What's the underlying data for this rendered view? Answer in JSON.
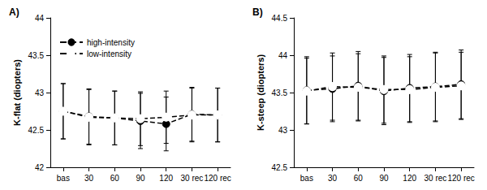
{
  "chart_data": [
    {
      "type": "line",
      "title": "A)",
      "y_label": "K-flat (diopters)",
      "categories": [
        "bas",
        "30",
        "60",
        "90",
        "120",
        "30 rec",
        "120 rec"
      ],
      "series": [
        {
          "name": "high-intensity",
          "color": "#000000",
          "marker": "circle",
          "line_style": "dashed",
          "values": [
            42.75,
            42.68,
            42.66,
            42.62,
            42.58,
            42.71,
            42.7
          ],
          "errors": [
            0.37,
            0.37,
            0.36,
            0.37,
            0.36,
            0.36,
            0.36
          ]
        },
        {
          "name": "low-intensity",
          "color": "#000000",
          "marker": "open circle",
          "line_style": "dashed",
          "values": [
            42.75,
            42.67,
            42.66,
            42.65,
            42.67,
            42.7,
            42.7
          ],
          "errors": [
            0.37,
            0.37,
            0.36,
            0.36,
            0.35,
            0.36,
            0.36
          ]
        }
      ],
      "ylim": [
        42,
        44
      ],
      "yticks": [
        42,
        42.5,
        43,
        43.5,
        44
      ],
      "grid": false,
      "legend": "upper left"
    },
    {
      "type": "line",
      "title": "B)",
      "y_label": "K-steep (diopters)",
      "categories": [
        "bas",
        "30",
        "60",
        "90",
        "120",
        "30 rec",
        "120 rec"
      ],
      "series": [
        {
          "name": "high-intensity",
          "color": "#000000",
          "marker": "circle",
          "line_style": "dashed",
          "values": [
            43.53,
            43.55,
            43.59,
            43.52,
            43.56,
            43.58,
            43.61
          ],
          "errors": [
            0.45,
            0.44,
            0.46,
            0.45,
            0.45,
            0.46,
            0.46
          ]
        },
        {
          "name": "low-intensity",
          "color": "#000000",
          "marker": "open circle",
          "line_style": "dashed",
          "values": [
            43.52,
            43.58,
            43.57,
            43.54,
            43.54,
            43.57,
            43.59
          ],
          "errors": [
            0.44,
            0.45,
            0.45,
            0.45,
            0.44,
            0.46,
            0.45
          ]
        }
      ],
      "ylim": [
        42.5,
        44.5
      ],
      "yticks": [
        42.5,
        43,
        43.5,
        44,
        44.5
      ],
      "grid": false
    }
  ]
}
